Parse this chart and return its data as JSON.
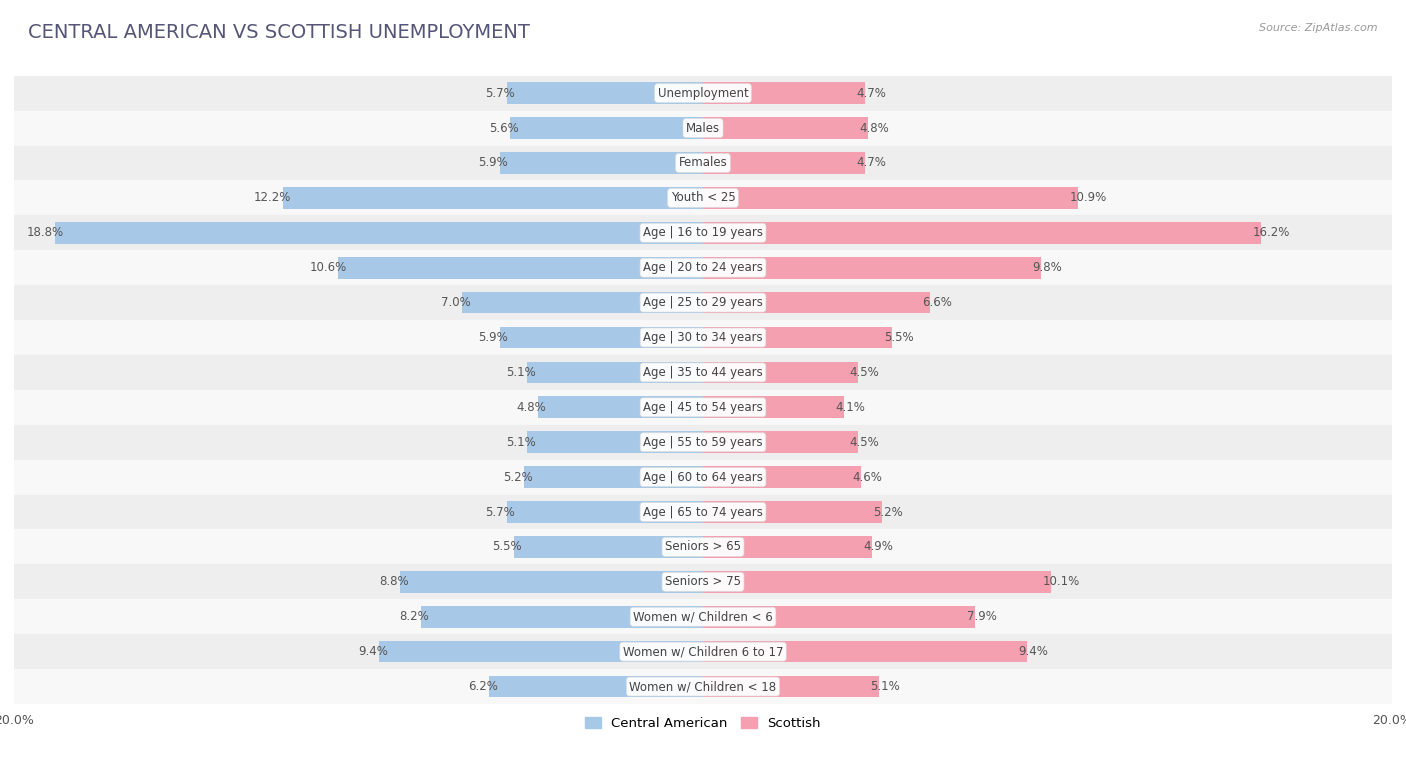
{
  "title": "CENTRAL AMERICAN VS SCOTTISH UNEMPLOYMENT",
  "source": "Source: ZipAtlas.com",
  "categories": [
    "Unemployment",
    "Males",
    "Females",
    "Youth < 25",
    "Age | 16 to 19 years",
    "Age | 20 to 24 years",
    "Age | 25 to 29 years",
    "Age | 30 to 34 years",
    "Age | 35 to 44 years",
    "Age | 45 to 54 years",
    "Age | 55 to 59 years",
    "Age | 60 to 64 years",
    "Age | 65 to 74 years",
    "Seniors > 65",
    "Seniors > 75",
    "Women w/ Children < 6",
    "Women w/ Children 6 to 17",
    "Women w/ Children < 18"
  ],
  "central_american": [
    5.7,
    5.6,
    5.9,
    12.2,
    18.8,
    10.6,
    7.0,
    5.9,
    5.1,
    4.8,
    5.1,
    5.2,
    5.7,
    5.5,
    8.8,
    8.2,
    9.4,
    6.2
  ],
  "scottish": [
    4.7,
    4.8,
    4.7,
    10.9,
    16.2,
    9.8,
    6.6,
    5.5,
    4.5,
    4.1,
    4.5,
    4.6,
    5.2,
    4.9,
    10.1,
    7.9,
    9.4,
    5.1
  ],
  "central_american_color": "#a8c8e8",
  "scottish_color": "#f4a0b0",
  "row_bg_odd": "#eeeeee",
  "row_bg_even": "#f8f8f8",
  "title_fontsize": 14,
  "label_fontsize": 8.5,
  "value_fontsize": 8.5,
  "xlim": 20.0,
  "bar_height": 0.62,
  "fig_width": 14.06,
  "fig_height": 7.57,
  "dpi": 100
}
